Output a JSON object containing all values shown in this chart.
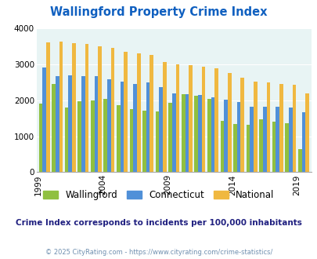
{
  "title": "Wallingford Property Crime Index",
  "subtitle": "Crime Index corresponds to incidents per 100,000 inhabitants",
  "footer": "© 2025 CityRating.com - https://www.cityrating.com/crime-statistics/",
  "years": [
    2000,
    2001,
    2002,
    2003,
    2004,
    2005,
    2006,
    2007,
    2008,
    2009,
    2010,
    2011,
    2012,
    2013,
    2014,
    2015,
    2016,
    2017,
    2018,
    2019,
    2020
  ],
  "x_tick_labels": [
    "1999",
    "2004",
    "2009",
    "2014",
    "2019"
  ],
  "wallingford": [
    1900,
    2450,
    1810,
    1980,
    2000,
    2050,
    1870,
    1760,
    1720,
    1700,
    1930,
    2170,
    2120,
    2050,
    1430,
    1350,
    1330,
    1470,
    1410,
    1370,
    640
  ],
  "connecticut": [
    2920,
    2680,
    2700,
    2680,
    2680,
    2580,
    2520,
    2450,
    2500,
    2370,
    2200,
    2180,
    2140,
    2090,
    2010,
    1960,
    1820,
    1830,
    1820,
    1800,
    1670
  ],
  "national": [
    3620,
    3640,
    3600,
    3560,
    3500,
    3450,
    3360,
    3310,
    3260,
    3060,
    3010,
    2970,
    2940,
    2890,
    2760,
    2620,
    2530,
    2500,
    2460,
    2430,
    2190
  ],
  "wallingford_color": "#90c040",
  "connecticut_color": "#5090d8",
  "national_color": "#f0b840",
  "bg_color": "#e8f4f4",
  "title_color": "#1060c0",
  "subtitle_color": "#202080",
  "footer_color": "#7090b0",
  "ylim": [
    0,
    4000
  ],
  "bar_width": 0.28
}
